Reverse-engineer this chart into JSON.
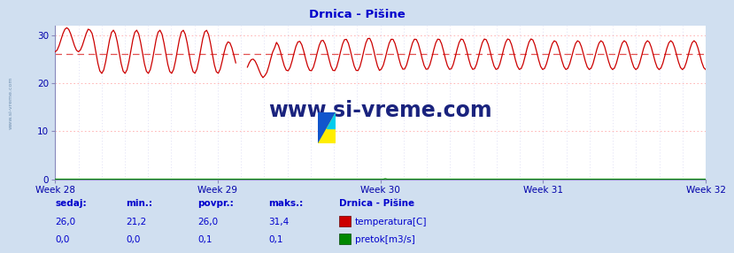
{
  "title": "Drnica - Pišine",
  "bg_color": "#d0dff0",
  "plot_bg_color": "#ffffff",
  "title_color": "#0000cc",
  "tick_label_color": "#0000aa",
  "stats_label_color": "#0000cc",
  "legend_title": "Drnica - Pišine",
  "legend_temp_label": "temperatura[C]",
  "legend_flow_label": "pretok[m3/s]",
  "xlabel_weeks": [
    "Week 28",
    "Week 29",
    "Week 30",
    "Week 31",
    "Week 32"
  ],
  "week_x_positions": [
    0,
    7,
    14,
    21,
    28
  ],
  "ylim": [
    0,
    32
  ],
  "xlim_days": [
    0,
    28
  ],
  "temp_line_color": "#cc0000",
  "temp_avg_color": "#dd3333",
  "flow_line_color": "#008800",
  "watermark_text": "www.si-vreme.com",
  "watermark_color": "#1a237e",
  "grid_h_color": "#ffaaaa",
  "grid_v_color": "#ccccee",
  "sedaj_label": "sedaj:",
  "min_label": "min.:",
  "povpr_label": "povpr.:",
  "maks_label": "maks.:",
  "temp_sedaj": "26,0",
  "temp_min": "21,2",
  "temp_povpr": "26,0",
  "temp_maks": "31,4",
  "flow_sedaj": "0,0",
  "flow_min": "0,0",
  "flow_povpr": "0,1",
  "flow_maks": "0,1",
  "temp_avg": 26.0,
  "n_points": 336
}
